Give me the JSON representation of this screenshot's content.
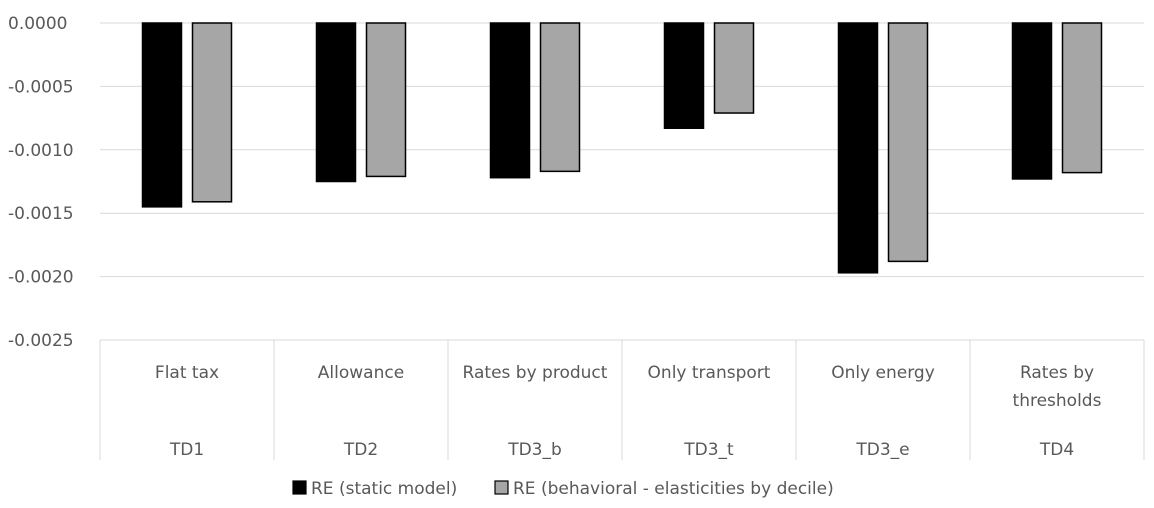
{
  "chart_data": {
    "type": "bar",
    "title": "",
    "xlabel": "",
    "ylabel": "",
    "ylim": [
      -0.0025,
      0.0
    ],
    "yticks": [
      "0.0000",
      "-0.0005",
      "-0.0010",
      "-0.0015",
      "-0.0020",
      "-0.0025"
    ],
    "ytick_values": [
      0.0,
      -0.0005,
      -0.001,
      -0.0015,
      -0.002,
      -0.0025
    ],
    "grid": true,
    "legend_position": "bottom",
    "categories": [
      {
        "name": [
          "Flat tax"
        ],
        "code": "TD1"
      },
      {
        "name": [
          "Allowance"
        ],
        "code": "TD2"
      },
      {
        "name": [
          "Rates by product"
        ],
        "code": "TD3_b"
      },
      {
        "name": [
          "Only transport"
        ],
        "code": "TD3_t"
      },
      {
        "name": [
          "Only energy"
        ],
        "code": "TD3_e"
      },
      {
        "name": [
          "Rates by",
          "thresholds"
        ],
        "code": "TD4"
      }
    ],
    "series": [
      {
        "name": "RE (static model)",
        "color": "#000000",
        "values": [
          -0.00145,
          -0.00125,
          -0.00122,
          -0.00083,
          -0.00197,
          -0.00123
        ]
      },
      {
        "name": "RE (behavioral - elasticities by decile)",
        "color": "#a6a6a6",
        "values": [
          -0.00141,
          -0.00121,
          -0.00117,
          -0.00071,
          -0.00188,
          -0.00118
        ]
      }
    ]
  }
}
